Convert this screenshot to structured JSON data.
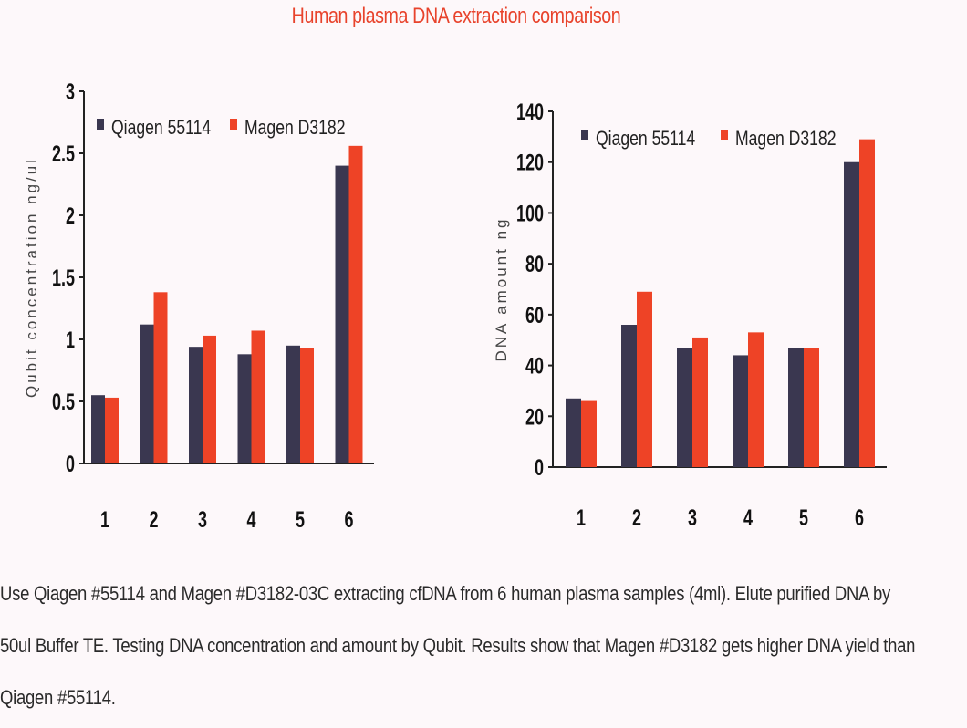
{
  "figure_title": "Human plasma DNA extraction comparison",
  "caption_lines": [
    "Use Qiagen #55114 and Magen #D3182-03C extracting cfDNA from 6 human plasma samples (4ml). Elute purified DNA by",
    "50ul Buffer TE. Testing DNA concentration and amount by Qubit. Results show that Magen #D3182 gets higher DNA yield than",
    "Qiagen #55114."
  ],
  "colors": {
    "qiagen": "#3a3750",
    "magen": "#ee4326",
    "title": "#e8432c"
  },
  "chart_data": [
    {
      "type": "bar",
      "title": "",
      "xlabel": "",
      "ylabel": "Qubit concentration ng/ul",
      "categories": [
        "1",
        "2",
        "3",
        "4",
        "5",
        "6"
      ],
      "ylim": [
        0,
        3
      ],
      "yticks": [
        0,
        0.5,
        1,
        1.5,
        2,
        2.5,
        3
      ],
      "ytick_labels": [
        "0",
        "0.5",
        "1",
        "1.5",
        "2",
        "2.5",
        "3"
      ],
      "grid": false,
      "legend_position": "top-left",
      "series": [
        {
          "name": "Qiagen 55114",
          "values": [
            0.55,
            1.12,
            0.94,
            0.88,
            0.95,
            2.4
          ]
        },
        {
          "name": "Magen D3182",
          "values": [
            0.53,
            1.38,
            1.03,
            1.07,
            0.93,
            2.56
          ]
        }
      ]
    },
    {
      "type": "bar",
      "title": "",
      "xlabel": "",
      "ylabel": "DNA amount ng",
      "categories": [
        "1",
        "2",
        "3",
        "4",
        "5",
        "6"
      ],
      "ylim": [
        0,
        140
      ],
      "yticks": [
        0,
        20,
        40,
        60,
        80,
        100,
        120,
        140
      ],
      "ytick_labels": [
        "0",
        "20",
        "40",
        "60",
        "80",
        "100",
        "120",
        "140"
      ],
      "grid": false,
      "legend_position": "top-left",
      "series": [
        {
          "name": "Qiagen 55114",
          "values": [
            27,
            56,
            47,
            44,
            47,
            120
          ]
        },
        {
          "name": "Magen D3182",
          "values": [
            26,
            69,
            51,
            53,
            47,
            129
          ]
        }
      ]
    }
  ]
}
